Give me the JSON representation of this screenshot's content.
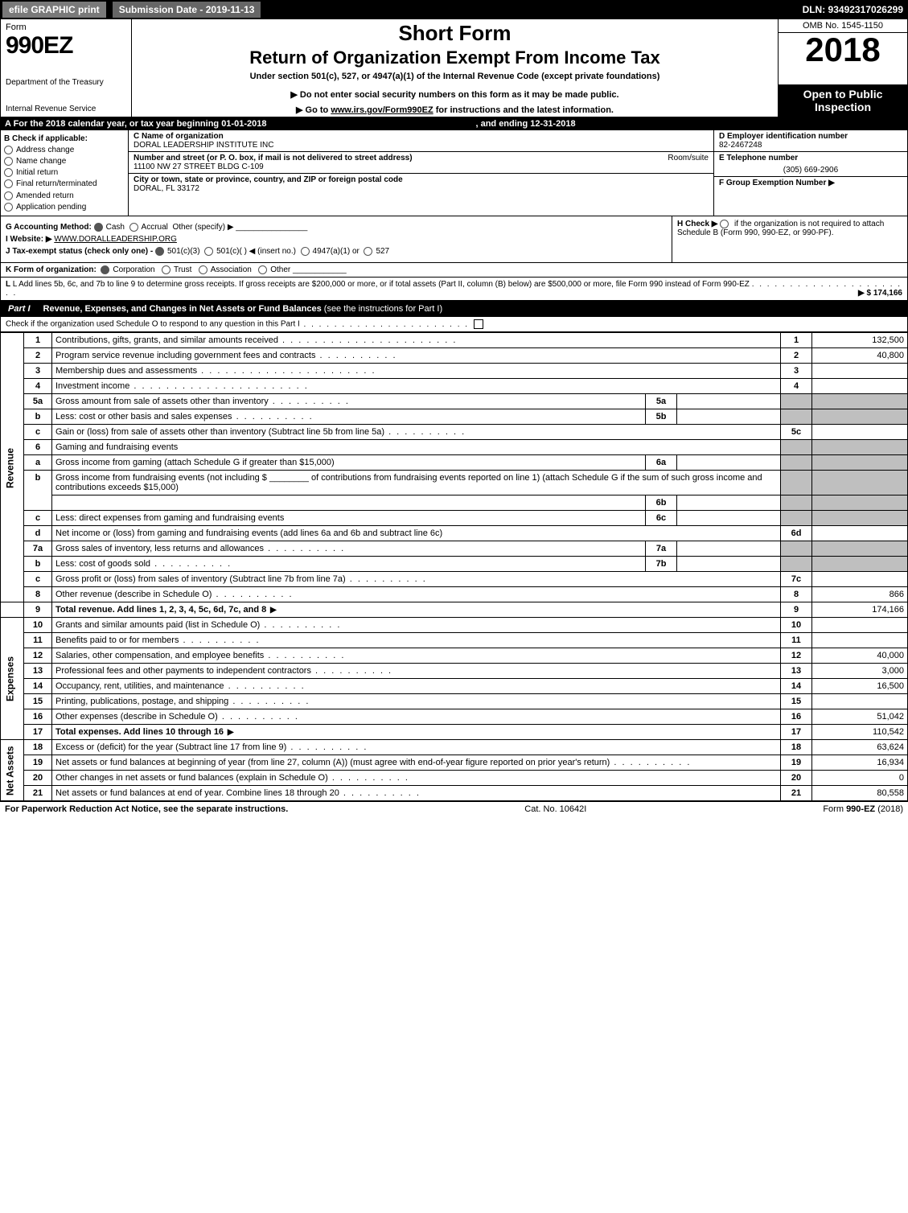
{
  "topbar": {
    "efile": "efile GRAPHIC print",
    "submission": "Submission Date - 2019-11-13",
    "dln": "DLN: 93492317026299"
  },
  "header": {
    "form_word": "Form",
    "form_no": "990EZ",
    "dept": "Department of the Treasury",
    "irs": "Internal Revenue Service",
    "short_form": "Short Form",
    "title": "Return of Organization Exempt From Income Tax",
    "under": "Under section 501(c), 527, or 4947(a)(1) of the Internal Revenue Code (except private foundations)",
    "noenter": "▶ Do not enter social security numbers on this form as it may be made public.",
    "goto_pre": "▶ Go to ",
    "goto_link": "www.irs.gov/Form990EZ",
    "goto_post": " for instructions and the latest information.",
    "omb": "OMB No. 1545-1150",
    "year": "2018",
    "open": "Open to Public Inspection"
  },
  "period": {
    "a": "A For the 2018 calendar year, or tax year beginning 01-01-2018",
    "end": ", and ending 12-31-2018"
  },
  "checks": {
    "b": "B Check if applicable:",
    "addr": "Address change",
    "name": "Name change",
    "init": "Initial return",
    "final": "Final return/terminated",
    "amend": "Amended return",
    "app": "Application pending"
  },
  "org": {
    "c_lbl": "C Name of organization",
    "c_val": "DORAL LEADERSHIP INSTITUTE INC",
    "street_lbl": "Number and street (or P. O. box, if mail is not delivered to street address)",
    "street_val": "11100 NW 27 STREET BLDG C-109",
    "room_lbl": "Room/suite",
    "city_lbl": "City or town, state or province, country, and ZIP or foreign postal code",
    "city_val": "DORAL, FL  33172"
  },
  "right": {
    "d_lbl": "D Employer identification number",
    "d_val": "82-2467248",
    "e_lbl": "E Telephone number",
    "e_val": "(305) 669-2906",
    "f_lbl": "F Group Exemption Number  ▶"
  },
  "gih": {
    "g": "G Accounting Method:",
    "g_cash": "Cash",
    "g_accr": "Accrual",
    "g_other": "Other (specify) ▶",
    "i": "I Website: ▶",
    "i_val": "WWW.DORALLEADERSHIP.ORG",
    "j": "J Tax-exempt status (check only one) -",
    "j_1": "501(c)(3)",
    "j_2": "501(c)(  ) ◀ (insert no.)",
    "j_3": "4947(a)(1) or",
    "j_4": "527",
    "h": "H  Check ▶",
    "h_txt": " if the organization is not required to attach Schedule B (Form 990, 990-EZ, or 990-PF)."
  },
  "k": {
    "lbl": "K Form of organization:",
    "corp": "Corporation",
    "trust": "Trust",
    "assoc": "Association",
    "other": "Other"
  },
  "l": {
    "txt": "L Add lines 5b, 6c, and 7b to line 9 to determine gross receipts. If gross receipts are $200,000 or more, or if total assets (Part II, column (B) below) are $500,000 or more, file Form 990 instead of Form 990-EZ",
    "amt": "▶ $ 174,166"
  },
  "part1": {
    "tab": "Part I",
    "title": "Revenue, Expenses, and Changes in Net Assets or Fund Balances",
    "sub": " (see the instructions for Part I)",
    "check": "Check if the organization used Schedule O to respond to any question in this Part I"
  },
  "side": {
    "rev": "Revenue",
    "exp": "Expenses",
    "net": "Net Assets"
  },
  "lines": {
    "l1": {
      "n": "1",
      "t": "Contributions, gifts, grants, and similar amounts received",
      "b": "1",
      "v": "132,500"
    },
    "l2": {
      "n": "2",
      "t": "Program service revenue including government fees and contracts",
      "b": "2",
      "v": "40,800"
    },
    "l3": {
      "n": "3",
      "t": "Membership dues and assessments",
      "b": "3",
      "v": ""
    },
    "l4": {
      "n": "4",
      "t": "Investment income",
      "b": "4",
      "v": ""
    },
    "l5a": {
      "n": "5a",
      "t": "Gross amount from sale of assets other than inventory",
      "mb": "5a"
    },
    "l5b": {
      "n": "b",
      "t": "Less: cost or other basis and sales expenses",
      "mb": "5b"
    },
    "l5c": {
      "n": "c",
      "t": "Gain or (loss) from sale of assets other than inventory (Subtract line 5b from line 5a)",
      "b": "5c",
      "v": ""
    },
    "l6": {
      "n": "6",
      "t": "Gaming and fundraising events"
    },
    "l6a": {
      "n": "a",
      "t": "Gross income from gaming (attach Schedule G if greater than $15,000)",
      "mb": "6a"
    },
    "l6b": {
      "n": "b",
      "t": "Gross income from fundraising events (not including $",
      "t2": "of contributions from fundraising events reported on line 1) (attach Schedule G if the sum of such gross income and contributions exceeds $15,000)",
      "mb": "6b"
    },
    "l6c": {
      "n": "c",
      "t": "Less: direct expenses from gaming and fundraising events",
      "mb": "6c"
    },
    "l6d": {
      "n": "d",
      "t": "Net income or (loss) from gaming and fundraising events (add lines 6a and 6b and subtract line 6c)",
      "b": "6d",
      "v": ""
    },
    "l7a": {
      "n": "7a",
      "t": "Gross sales of inventory, less returns and allowances",
      "mb": "7a"
    },
    "l7b": {
      "n": "b",
      "t": "Less: cost of goods sold",
      "mb": "7b"
    },
    "l7c": {
      "n": "c",
      "t": "Gross profit or (loss) from sales of inventory (Subtract line 7b from line 7a)",
      "b": "7c",
      "v": ""
    },
    "l8": {
      "n": "8",
      "t": "Other revenue (describe in Schedule O)",
      "b": "8",
      "v": "866"
    },
    "l9": {
      "n": "9",
      "t": "Total revenue. Add lines 1, 2, 3, 4, 5c, 6d, 7c, and 8",
      "b": "9",
      "v": "174,166"
    },
    "l10": {
      "n": "10",
      "t": "Grants and similar amounts paid (list in Schedule O)",
      "b": "10",
      "v": ""
    },
    "l11": {
      "n": "11",
      "t": "Benefits paid to or for members",
      "b": "11",
      "v": ""
    },
    "l12": {
      "n": "12",
      "t": "Salaries, other compensation, and employee benefits",
      "b": "12",
      "v": "40,000"
    },
    "l13": {
      "n": "13",
      "t": "Professional fees and other payments to independent contractors",
      "b": "13",
      "v": "3,000"
    },
    "l14": {
      "n": "14",
      "t": "Occupancy, rent, utilities, and maintenance",
      "b": "14",
      "v": "16,500"
    },
    "l15": {
      "n": "15",
      "t": "Printing, publications, postage, and shipping",
      "b": "15",
      "v": ""
    },
    "l16": {
      "n": "16",
      "t": "Other expenses (describe in Schedule O)",
      "b": "16",
      "v": "51,042"
    },
    "l17": {
      "n": "17",
      "t": "Total expenses. Add lines 10 through 16",
      "b": "17",
      "v": "110,542"
    },
    "l18": {
      "n": "18",
      "t": "Excess or (deficit) for the year (Subtract line 17 from line 9)",
      "b": "18",
      "v": "63,624"
    },
    "l19": {
      "n": "19",
      "t": "Net assets or fund balances at beginning of year (from line 27, column (A)) (must agree with end-of-year figure reported on prior year's return)",
      "b": "19",
      "v": "16,934"
    },
    "l20": {
      "n": "20",
      "t": "Other changes in net assets or fund balances (explain in Schedule O)",
      "b": "20",
      "v": "0"
    },
    "l21": {
      "n": "21",
      "t": "Net assets or fund balances at end of year. Combine lines 18 through 20",
      "b": "21",
      "v": "80,558"
    }
  },
  "footer": {
    "left": "For Paperwork Reduction Act Notice, see the separate instructions.",
    "cat": "Cat. No. 10642I",
    "right_pre": "Form ",
    "right_b": "990-EZ",
    "right_post": " (2018)"
  }
}
